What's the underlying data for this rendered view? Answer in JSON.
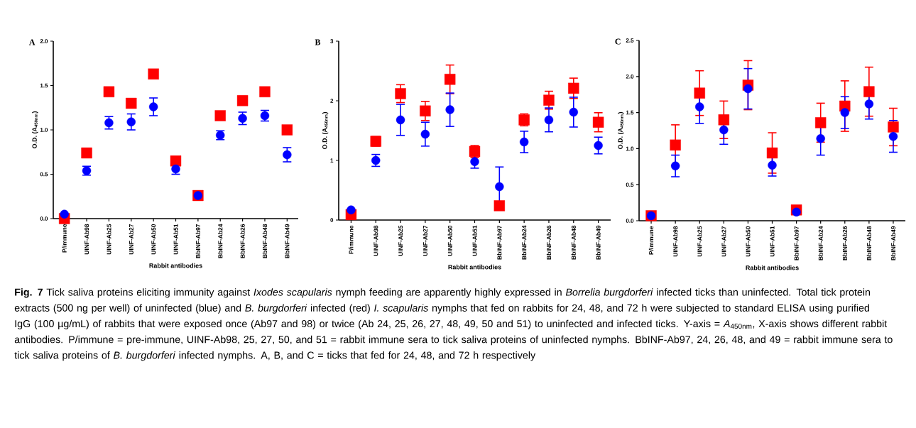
{
  "chart_data": [
    {
      "type": "scatter",
      "title": "A",
      "xlabel": "Rabbit antibodies",
      "ylabel": "O.D. (A$_{450nm}$)",
      "categories": [
        "P/immune",
        "UINF-Ab98",
        "UINF-Ab25",
        "UINF-Ab27",
        "UINF-Ab50",
        "UINF-Ab51",
        "BbINF-Ab97",
        "BbINF-Ab24",
        "BbINF-Ab26",
        "BbINF-Ab48",
        "BbINF-Ab49"
      ],
      "ylim": [
        0,
        2
      ],
      "yticks": [
        {
          "value": 0,
          "label": "0.0"
        },
        0.5,
        {
          "value": 1,
          "label": "1.0"
        },
        1.5,
        {
          "value": 2,
          "label": "2.0"
        }
      ],
      "series": [
        {
          "color": "#ff0000",
          "marker": "square",
          "values": [
            0.0,
            0.74,
            1.43,
            1.3,
            1.63,
            0.65,
            0.26,
            1.16,
            1.33,
            1.43,
            1.0
          ],
          "errors": [
            null,
            null,
            null,
            null,
            null,
            null,
            null,
            null,
            0.05,
            null,
            null
          ]
        },
        {
          "color": "#0000ff",
          "marker": "circle",
          "values": [
            0.05,
            0.54,
            1.08,
            1.09,
            1.26,
            0.56,
            0.26,
            0.94,
            1.13,
            1.16,
            0.72
          ],
          "errors": [
            null,
            0.05,
            0.07,
            0.09,
            0.1,
            0.06,
            0.05,
            0.05,
            0.07,
            0.06,
            0.08
          ]
        }
      ],
      "annotations": [
        "**Fig. 7** Tick saliva proteins eliciting immunity against *Ixodes scapularis* nymph feeding are apparently highly expressed in *Borrelia burgdorferi* infected ticks than uninfected. Total tick protein extracts (500 ng per well) of uninfected (blue) and *B. burgdorferi* infected (red) *I. scapularis* nymphs that fed on rabbits for 24, 48, and 72 h were subjected to standard ELISA using purified IgG (100 µg/mL) of rabbits that were exposed once (Ab97 and 98) or twice (Ab 24, 25, 26, 27, 48, 49, 50 and 51) to uninfected and infected ticks. Y-axis = *A*$_{450nm}$, X-axis shows different rabbit antibodies. P/immune = pre-immune, UINF-Ab98, 25, 27, 50, and 51 = rabbit immune sera to tick saliva proteins of uninfected nymphs. BbINF-Ab97, 24, 26, 48, and 49 = rabbit immune sera to tick saliva proteins of *B. burgdorferi* infected nymphs. A, B, and C = ticks that fed for 24, 48, and 72 h respectively"
      ]
    },
    {
      "type": "scatter",
      "title": "B",
      "xlabel": "Rabbit antibodies",
      "ylabel": "O.D. (A$_{450nm}$)",
      "categories": [
        "P/immune",
        "UINF-Ab98",
        "UINF-Ab25",
        "UINF-Ab27",
        "UINF-Ab50",
        "UINF-Ab51",
        "BbINF-Ab97",
        "BbINF-Ab24",
        "BbINF-Ab26",
        "BbINF-Ab48",
        "BbINF-Ab49"
      ],
      "ylim": [
        0,
        3
      ],
      "yticks": [
        0,
        1,
        2,
        3
      ],
      "series": [
        {
          "color": "#ff0000",
          "marker": "square",
          "values": [
            0.09,
            1.32,
            2.12,
            1.83,
            2.36,
            1.15,
            0.24,
            1.68,
            2.01,
            2.21,
            1.64
          ],
          "errors": [
            null,
            0.08,
            0.15,
            0.16,
            0.24,
            0.1,
            null,
            0.1,
            0.15,
            0.17,
            0.16
          ]
        },
        {
          "color": "#0000ff",
          "marker": "circle",
          "values": [
            0.17,
            1.0,
            1.68,
            1.44,
            1.85,
            0.98,
            0.56,
            1.31,
            1.68,
            1.81,
            1.25
          ],
          "errors": [
            null,
            0.1,
            0.26,
            0.2,
            0.28,
            0.11,
            0.33,
            0.18,
            0.2,
            0.25,
            0.14
          ]
        }
      ]
    },
    {
      "type": "scatter",
      "title": "C",
      "xlabel": "Rabbit antibodies",
      "ylabel": "O.D. (A$_{450nm}$)",
      "categories": [
        "P/immune",
        "UINF-Ab98",
        "UINF-Ab25",
        "UINF-Ab27",
        "UINF-Ab50",
        "UINF-Ab51",
        "BbINF-Ab97",
        "BbINF-Ab24",
        "BbINF-Ab26",
        "BbINF-Ab48",
        "BbINF-Ab49"
      ],
      "ylim": [
        0,
        2.5
      ],
      "yticks": [
        {
          "value": 0,
          "label": "0.0"
        },
        0.5,
        {
          "value": 1,
          "label": "1.0"
        },
        1.5,
        {
          "value": 2,
          "label": "2.0"
        },
        2.5
      ],
      "series": [
        {
          "color": "#ff0000",
          "marker": "square",
          "values": [
            0.07,
            1.05,
            1.77,
            1.4,
            1.88,
            0.94,
            0.15,
            1.36,
            1.59,
            1.79,
            1.3
          ],
          "errors": [
            null,
            0.28,
            0.31,
            0.26,
            0.34,
            0.28,
            null,
            0.27,
            0.35,
            0.34,
            0.26
          ]
        },
        {
          "color": "#0000ff",
          "marker": "circle",
          "values": [
            0.07,
            0.76,
            1.58,
            1.26,
            1.83,
            0.77,
            0.12,
            1.14,
            1.5,
            1.62,
            1.17
          ],
          "errors": [
            null,
            0.15,
            0.23,
            0.2,
            0.28,
            0.15,
            null,
            0.23,
            0.22,
            0.21,
            0.22
          ]
        }
      ]
    }
  ]
}
